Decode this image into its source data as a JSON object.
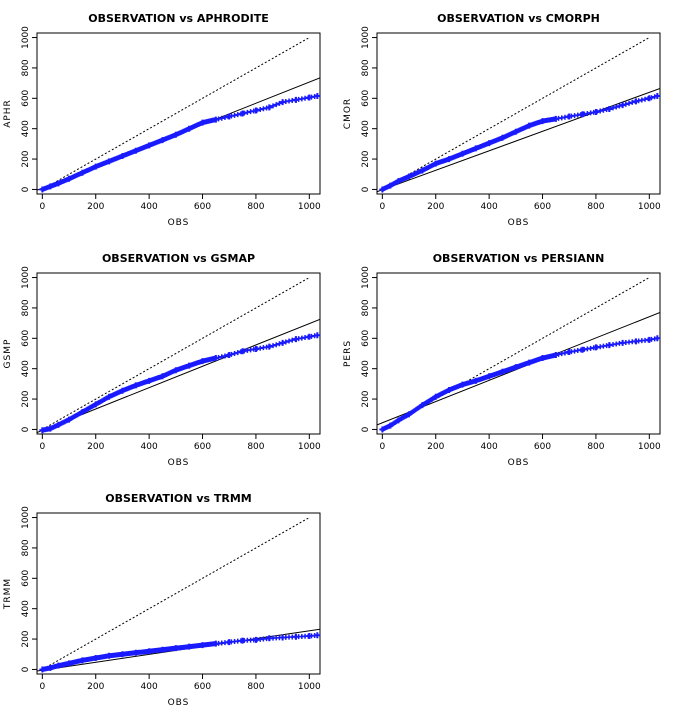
{
  "chart_data": [
    {
      "type": "scatter",
      "title": "OBSERVATION vs APHRODITE",
      "xlabel": "OBS",
      "ylabel": "APHR",
      "xlim": [
        -20,
        1040
      ],
      "ylim": [
        -30,
        1030
      ],
      "x_ticks": [
        "0",
        "200",
        "400",
        "600",
        "800",
        "1000"
      ],
      "y_ticks": [
        "0",
        "200",
        "400",
        "600",
        "800",
        "1000"
      ],
      "points": [
        [
          0,
          0
        ],
        [
          30,
          20
        ],
        [
          60,
          40
        ],
        [
          100,
          70
        ],
        [
          150,
          110
        ],
        [
          200,
          150
        ],
        [
          250,
          185
        ],
        [
          300,
          220
        ],
        [
          350,
          255
        ],
        [
          400,
          290
        ],
        [
          450,
          325
        ],
        [
          500,
          360
        ],
        [
          550,
          400
        ],
        [
          600,
          440
        ],
        [
          650,
          460
        ],
        [
          700,
          480
        ],
        [
          750,
          500
        ],
        [
          800,
          520
        ],
        [
          850,
          540
        ],
        [
          900,
          575
        ],
        [
          950,
          590
        ],
        [
          1000,
          605
        ],
        [
          1030,
          615
        ]
      ],
      "reference_line": [
        [
          0,
          0
        ],
        [
          1000,
          1000
        ]
      ],
      "fit_line": [
        [
          -20,
          -5
        ],
        [
          1040,
          735
        ]
      ],
      "point_color": "#1a1aff"
    },
    {
      "type": "scatter",
      "title": "OBSERVATION vs CMORPH",
      "xlabel": "OBS",
      "ylabel": "CMOR",
      "xlim": [
        -20,
        1040
      ],
      "ylim": [
        -30,
        1030
      ],
      "x_ticks": [
        "0",
        "200",
        "400",
        "600",
        "800",
        "1000"
      ],
      "y_ticks": [
        "0",
        "200",
        "400",
        "600",
        "800",
        "1000"
      ],
      "points": [
        [
          0,
          0
        ],
        [
          30,
          25
        ],
        [
          60,
          55
        ],
        [
          100,
          85
        ],
        [
          150,
          125
        ],
        [
          200,
          170
        ],
        [
          250,
          200
        ],
        [
          300,
          235
        ],
        [
          350,
          270
        ],
        [
          400,
          305
        ],
        [
          450,
          340
        ],
        [
          500,
          380
        ],
        [
          550,
          420
        ],
        [
          600,
          450
        ],
        [
          650,
          465
        ],
        [
          700,
          480
        ],
        [
          750,
          495
        ],
        [
          800,
          510
        ],
        [
          850,
          530
        ],
        [
          900,
          555
        ],
        [
          950,
          580
        ],
        [
          1000,
          600
        ],
        [
          1030,
          615
        ]
      ],
      "reference_line": [
        [
          0,
          0
        ],
        [
          1000,
          1000
        ]
      ],
      "fit_line": [
        [
          -20,
          -15
        ],
        [
          1040,
          665
        ]
      ],
      "point_color": "#1a1aff"
    },
    {
      "type": "scatter",
      "title": "OBSERVATION vs GSMAP",
      "xlabel": "OBS",
      "ylabel": "GSMP",
      "xlim": [
        -20,
        1040
      ],
      "ylim": [
        -30,
        1030
      ],
      "x_ticks": [
        "0",
        "200",
        "400",
        "600",
        "800",
        "1000"
      ],
      "y_ticks": [
        "0",
        "200",
        "400",
        "600",
        "800",
        "1000"
      ],
      "points": [
        [
          0,
          -5
        ],
        [
          30,
          5
        ],
        [
          60,
          30
        ],
        [
          100,
          65
        ],
        [
          150,
          115
        ],
        [
          200,
          165
        ],
        [
          250,
          215
        ],
        [
          300,
          255
        ],
        [
          350,
          290
        ],
        [
          400,
          320
        ],
        [
          450,
          350
        ],
        [
          500,
          390
        ],
        [
          550,
          420
        ],
        [
          600,
          450
        ],
        [
          650,
          470
        ],
        [
          700,
          490
        ],
        [
          750,
          515
        ],
        [
          800,
          530
        ],
        [
          850,
          545
        ],
        [
          900,
          570
        ],
        [
          950,
          595
        ],
        [
          1000,
          610
        ],
        [
          1030,
          620
        ]
      ],
      "reference_line": [
        [
          0,
          0
        ],
        [
          1000,
          1000
        ]
      ],
      "fit_line": [
        [
          -20,
          -20
        ],
        [
          1040,
          725
        ]
      ],
      "point_color": "#1a1aff"
    },
    {
      "type": "scatter",
      "title": "OBSERVATION vs PERSIANN",
      "xlabel": "OBS",
      "ylabel": "PERS",
      "xlim": [
        -20,
        1040
      ],
      "ylim": [
        -30,
        1030
      ],
      "x_ticks": [
        "0",
        "200",
        "400",
        "600",
        "800",
        "1000"
      ],
      "y_ticks": [
        "0",
        "200",
        "400",
        "600",
        "800",
        "1000"
      ],
      "points": [
        [
          0,
          0
        ],
        [
          30,
          25
        ],
        [
          60,
          60
        ],
        [
          100,
          100
        ],
        [
          150,
          160
        ],
        [
          200,
          215
        ],
        [
          250,
          260
        ],
        [
          300,
          295
        ],
        [
          350,
          320
        ],
        [
          400,
          350
        ],
        [
          450,
          380
        ],
        [
          500,
          410
        ],
        [
          550,
          440
        ],
        [
          600,
          470
        ],
        [
          650,
          490
        ],
        [
          700,
          510
        ],
        [
          750,
          525
        ],
        [
          800,
          540
        ],
        [
          850,
          555
        ],
        [
          900,
          570
        ],
        [
          950,
          580
        ],
        [
          1000,
          590
        ],
        [
          1030,
          600
        ]
      ],
      "reference_line": [
        [
          0,
          0
        ],
        [
          1000,
          1000
        ]
      ],
      "fit_line": [
        [
          -20,
          30
        ],
        [
          1040,
          770
        ]
      ],
      "point_color": "#1a1aff"
    },
    {
      "type": "scatter",
      "title": "OBSERVATION vs TRMM",
      "xlabel": "OBS",
      "ylabel": "TRMM",
      "xlim": [
        -20,
        1040
      ],
      "ylim": [
        -30,
        1030
      ],
      "x_ticks": [
        "0",
        "200",
        "400",
        "600",
        "800",
        "1000"
      ],
      "y_ticks": [
        "0",
        "200",
        "400",
        "600",
        "800",
        "1000"
      ],
      "points": [
        [
          0,
          0
        ],
        [
          30,
          10
        ],
        [
          60,
          25
        ],
        [
          100,
          40
        ],
        [
          150,
          60
        ],
        [
          200,
          75
        ],
        [
          250,
          90
        ],
        [
          300,
          100
        ],
        [
          350,
          110
        ],
        [
          400,
          120
        ],
        [
          450,
          130
        ],
        [
          500,
          140
        ],
        [
          550,
          150
        ],
        [
          600,
          160
        ],
        [
          650,
          170
        ],
        [
          700,
          180
        ],
        [
          750,
          190
        ],
        [
          800,
          195
        ],
        [
          850,
          205
        ],
        [
          900,
          210
        ],
        [
          950,
          215
        ],
        [
          1000,
          220
        ],
        [
          1030,
          225
        ]
      ],
      "reference_line": [
        [
          0,
          0
        ],
        [
          1000,
          1000
        ]
      ],
      "fit_line": [
        [
          -20,
          -10
        ],
        [
          1040,
          265
        ]
      ],
      "point_color": "#1a1aff"
    }
  ]
}
